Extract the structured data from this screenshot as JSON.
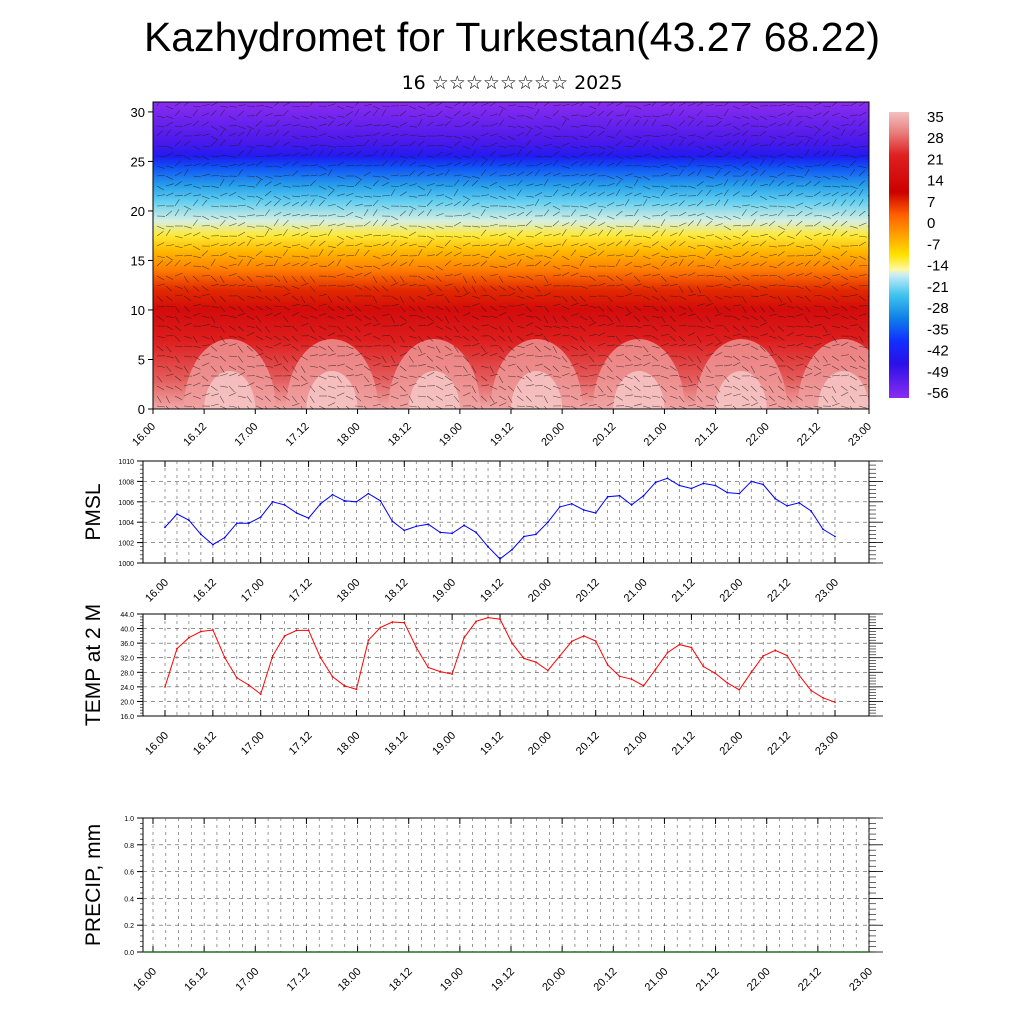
{
  "page": {
    "title": "Kazhydromet for Turkestan(43.27 68.22)",
    "subtitle": "16 ☆☆☆☆☆☆☆☆ 2025"
  },
  "time_ticks": [
    "16.00",
    "16.12",
    "17.00",
    "17.12",
    "18.00",
    "18.12",
    "19.00",
    "19.12",
    "20.00",
    "20.12",
    "21.00",
    "21.12",
    "22.00",
    "22.12",
    "23.00"
  ],
  "chart_data": [
    {
      "type": "heatmap",
      "title": "",
      "xlabel": "",
      "ylabel": "",
      "x_tick_labels": [
        "16.00",
        "16.12",
        "17.00",
        "17.12",
        "18.00",
        "18.12",
        "19.00",
        "19.12",
        "20.00",
        "20.12",
        "21.00",
        "21.12",
        "22.00",
        "22.12",
        "23.00"
      ],
      "y_ticks": [
        0,
        5,
        10,
        15,
        20,
        25,
        30
      ],
      "ylim": [
        0,
        31
      ],
      "colorbar_labels": [
        "35",
        "28",
        "21",
        "14",
        "7",
        "0",
        "-7",
        "-14",
        "-21",
        "-28",
        "-35",
        "-42",
        "-49",
        "-56"
      ],
      "colorbar_range": [
        -60,
        38
      ],
      "overlay": "wind barbs",
      "temperature_by_level": [
        {
          "level": 0,
          "value": 35
        },
        {
          "level": 3,
          "value": 27
        },
        {
          "level": 7,
          "value": 21
        },
        {
          "level": 10,
          "value": 14
        },
        {
          "level": 12,
          "value": 7
        },
        {
          "level": 14,
          "value": 0
        },
        {
          "level": 16,
          "value": -7
        },
        {
          "level": 17.5,
          "value": -14
        },
        {
          "level": 19,
          "value": -21
        },
        {
          "level": 21,
          "value": -28
        },
        {
          "level": 22.5,
          "value": -35
        },
        {
          "level": 24.5,
          "value": -45
        },
        {
          "level": 25.5,
          "value": -52
        },
        {
          "level": 27,
          "value": -56
        },
        {
          "level": 31,
          "value": -60
        }
      ]
    },
    {
      "type": "line",
      "ylabel": "PMSL",
      "ylim": [
        1000,
        1010
      ],
      "y_ticks": [
        "1000",
        "1002",
        "1004",
        "1006",
        "1008",
        "1010"
      ],
      "x_tick_labels": [
        "16.00",
        "16.12",
        "17.00",
        "17.12",
        "18.00",
        "18.12",
        "19.00",
        "19.12",
        "20.00",
        "20.12",
        "21.00",
        "21.12",
        "22.00",
        "22.12",
        "23.00"
      ],
      "color": "#0000ff",
      "series": [
        {
          "values": [
            1003.5,
            1004.8,
            1004.2,
            1002.8,
            1001.8,
            1002.5,
            1003.9,
            1003.9,
            1004.5,
            1006.0,
            1005.7,
            1004.9,
            1004.4,
            1005.8,
            1006.7,
            1006.1,
            1006.0,
            1006.8,
            1006.1,
            1004.1,
            1003.2,
            1003.6,
            1003.8,
            1003.0,
            1002.9,
            1003.7,
            1003.0,
            1001.6,
            1000.4,
            1001.3,
            1002.6,
            1002.8,
            1004.0,
            1005.5,
            1005.8,
            1005.2,
            1004.9,
            1006.5,
            1006.6,
            1005.7,
            1006.6,
            1007.9,
            1008.3,
            1007.6,
            1007.3,
            1007.8,
            1007.6,
            1006.9,
            1006.8,
            1008.0,
            1007.7,
            1006.3,
            1005.6,
            1005.9,
            1005.1,
            1003.3,
            1002.6
          ]
        }
      ]
    },
    {
      "type": "line",
      "ylabel": "TEMP at 2 M",
      "ylim": [
        16,
        44
      ],
      "y_ticks": [
        "16.0",
        "20.0",
        "24.0",
        "28.0",
        "32.0",
        "36.0",
        "40.0",
        "44.0"
      ],
      "x_tick_labels": [
        "16.00",
        "16.12",
        "17.00",
        "17.12",
        "18.00",
        "18.12",
        "19.00",
        "19.12",
        "20.00",
        "20.12",
        "21.00",
        "21.12",
        "22.00",
        "22.12",
        "23.00"
      ],
      "color": "#ff0000",
      "series": [
        {
          "values": [
            24.0,
            34.5,
            37.5,
            39.2,
            39.6,
            32.0,
            26.5,
            24.5,
            22.0,
            32.5,
            38.0,
            39.5,
            39.5,
            32.0,
            26.8,
            24.3,
            23.3,
            36.8,
            40.3,
            41.8,
            41.6,
            34.8,
            29.3,
            28.2,
            27.5,
            37.5,
            42.0,
            43.0,
            42.6,
            36.0,
            31.8,
            30.8,
            28.5,
            32.5,
            36.5,
            38.0,
            36.6,
            30.0,
            26.9,
            26.1,
            24.3,
            28.8,
            33.4,
            35.6,
            34.8,
            29.6,
            27.7,
            25.1,
            23.2,
            28.0,
            32.5,
            34.0,
            32.6,
            27.2,
            23.0,
            21.0,
            19.8
          ]
        }
      ]
    },
    {
      "type": "bar",
      "ylabel": "PRECIP, mm",
      "ylim": [
        0,
        1.0
      ],
      "y_ticks": [
        "0.0",
        "0.2",
        "0.4",
        "0.6",
        "0.8",
        "1.0"
      ],
      "x_tick_labels": [
        "16.00",
        "16.12",
        "17.00",
        "17.12",
        "18.00",
        "18.12",
        "19.00",
        "19.12",
        "20.00",
        "20.12",
        "21.00",
        "21.12",
        "22.00",
        "22.12",
        "23.00"
      ],
      "series": [
        {
          "values": [
            0,
            0,
            0,
            0,
            0,
            0,
            0,
            0,
            0,
            0,
            0,
            0,
            0,
            0,
            0,
            0,
            0,
            0,
            0,
            0,
            0,
            0,
            0,
            0,
            0,
            0,
            0,
            0,
            0,
            0,
            0,
            0,
            0,
            0,
            0,
            0,
            0,
            0,
            0,
            0,
            0,
            0,
            0,
            0,
            0,
            0,
            0,
            0,
            0,
            0,
            0,
            0,
            0,
            0,
            0,
            0,
            0
          ]
        }
      ]
    }
  ]
}
